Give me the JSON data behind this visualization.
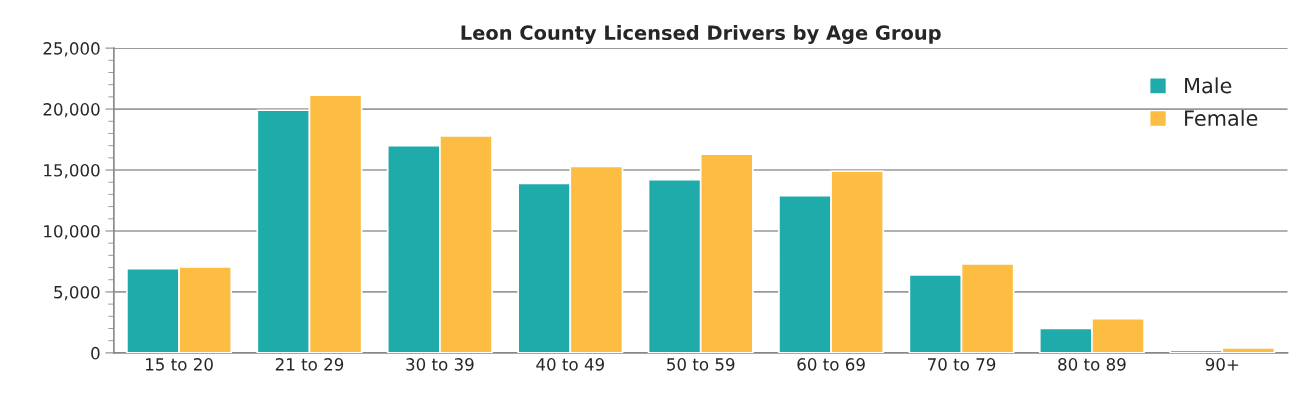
{
  "chart_data": {
    "type": "bar",
    "title": "Leon County Licensed Drivers by Age Group",
    "categories": [
      "15 to 20",
      "21 to 29",
      "30 to 39",
      "40 to 49",
      "50 to 59",
      "60 to 69",
      "70 to 79",
      "80 to 89",
      "90+"
    ],
    "series": [
      {
        "name": "Male",
        "color": "#20abab",
        "values": [
          6900,
          19900,
          17000,
          13900,
          14200,
          12900,
          6400,
          2000,
          200
        ]
      },
      {
        "name": "Female",
        "color": "#fdbc42",
        "values": [
          7050,
          21150,
          17800,
          15300,
          16300,
          14900,
          7300,
          2800,
          400
        ]
      }
    ],
    "ylim": [
      0,
      25000
    ],
    "yticks": [
      {
        "value": 0,
        "label": "0"
      },
      {
        "value": 5000,
        "label": "5,000"
      },
      {
        "value": 10000,
        "label": "10,000"
      },
      {
        "value": 15000,
        "label": "15,000"
      },
      {
        "value": 20000,
        "label": "20,000"
      },
      {
        "value": 25000,
        "label": "25,000"
      }
    ],
    "grid": "y",
    "legend": "top right"
  }
}
